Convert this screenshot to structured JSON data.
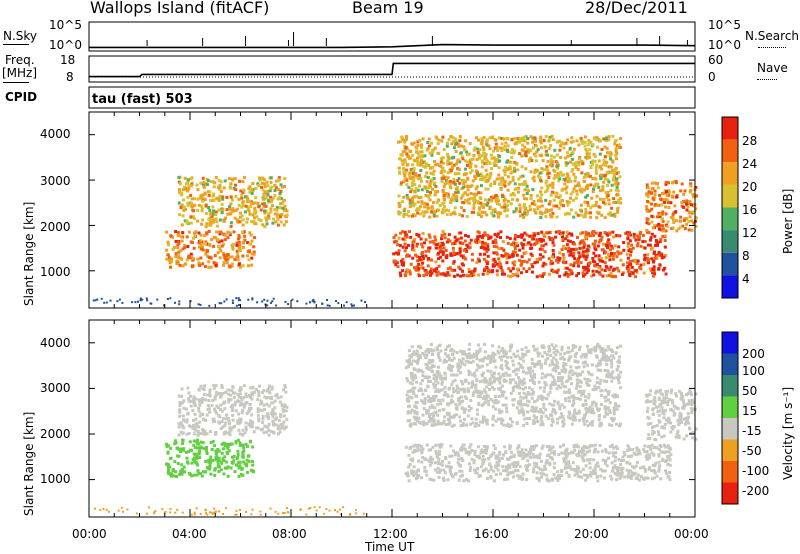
{
  "header": {
    "station": "Wallops Island (fitACF)",
    "beam": "Beam 19",
    "date": "28/Dec/2011"
  },
  "top_panel": {
    "nsky_label": "N.Sky",
    "nsearch_label": "N.Search",
    "left_ticks": [
      "10^5",
      "10^0"
    ],
    "right_ticks": [
      "10^5",
      "10^0"
    ]
  },
  "freq_panel": {
    "freq_label": "Freq.",
    "freq_unit": "[MHz]",
    "nave_label": "Nave",
    "left_ticks": [
      "18",
      "8"
    ],
    "right_ticks": [
      "60",
      "0"
    ]
  },
  "cpid_panel": {
    "cpid_label": "CPID",
    "mode": "tau (fast) 503"
  },
  "power_panel": {
    "ylabel": "Slant Range [km]",
    "yticks": [
      "4000",
      "3000",
      "2000",
      "1000"
    ],
    "colorbar_label": "Power [dB]",
    "colorbar_ticks": [
      "28",
      "24",
      "20",
      "16",
      "12",
      "8",
      "4"
    ],
    "colorbar_colors": [
      "#1010e0",
      "#2050a0",
      "#3a8a70",
      "#50b060",
      "#d8c030",
      "#f0a020",
      "#f06010",
      "#e82010"
    ]
  },
  "velocity_panel": {
    "ylabel": "Slant Range [km]",
    "yticks": [
      "4000",
      "3000",
      "2000",
      "1000"
    ],
    "colorbar_label": "Velocity [m s⁻¹]",
    "colorbar_ticks": [
      "200",
      "100",
      "50",
      "15",
      "-15",
      "-50",
      "-100",
      "-200"
    ],
    "colorbar_colors": [
      "#1010e0",
      "#2050a0",
      "#3a8a70",
      "#60d040",
      "#c8c8c0",
      "#f0a020",
      "#f06010",
      "#e82010"
    ]
  },
  "x_axis": {
    "label": "Time UT",
    "ticks": [
      "00:00",
      "04:00",
      "08:00",
      "12:00",
      "16:00",
      "20:00",
      "00:00"
    ]
  },
  "chart_data": [
    {
      "type": "line",
      "title": "",
      "series": [
        {
          "name": "N.Sky",
          "x_hours": [
            0,
            2,
            4,
            6,
            8,
            10,
            12,
            14,
            16,
            18,
            20,
            22,
            24
          ],
          "values_log10": [
            0.3,
            0.3,
            0.3,
            0.3,
            0.3,
            0.3,
            0.4,
            0.8,
            0.7,
            0.7,
            0.7,
            0.7,
            0.6
          ]
        }
      ]
    },
    {
      "type": "line",
      "title": "",
      "ylabel": "Freq. [MHz]",
      "ylim": [
        8,
        18
      ],
      "series": [
        {
          "name": "Freq.",
          "x_hours": [
            0,
            2,
            2.1,
            12,
            12.05,
            24
          ],
          "values": [
            10,
            10,
            11,
            11,
            16,
            16
          ]
        }
      ]
    },
    {
      "type": "heatmap",
      "title": "",
      "ylabel": "Slant Range [km]",
      "xlabel": "Time UT",
      "xlim": [
        0,
        24
      ],
      "ylim": [
        180,
        4500
      ],
      "quantity": "Power [dB]",
      "regions": [
        {
          "t_start": 3.5,
          "t_end": 7.8,
          "range_low": 2000,
          "range_high": 3100,
          "value": 20
        },
        {
          "t_start": 3.0,
          "t_end": 6.5,
          "range_low": 1100,
          "range_high": 1900,
          "value": 24
        },
        {
          "t_start": 12.0,
          "t_end": 22.8,
          "range_low": 900,
          "range_high": 1900,
          "value": 28
        },
        {
          "t_start": 12.2,
          "t_end": 21.0,
          "range_low": 2200,
          "range_high": 4000,
          "value": 20
        },
        {
          "t_start": 22.0,
          "t_end": 24.0,
          "range_low": 1900,
          "range_high": 3000,
          "value": 24
        }
      ]
    },
    {
      "type": "heatmap",
      "title": "",
      "ylabel": "Slant Range [km]",
      "xlabel": "Time UT",
      "xlim": [
        0,
        24
      ],
      "ylim": [
        180,
        4500
      ],
      "quantity": "Velocity [m s⁻¹]",
      "regions": [
        {
          "t_start": 3.0,
          "t_end": 6.5,
          "range_low": 1100,
          "range_high": 1900,
          "value": 30
        },
        {
          "t_start": 3.5,
          "t_end": 7.8,
          "range_low": 2000,
          "range_high": 3100,
          "value": 0
        },
        {
          "t_start": 12.5,
          "t_end": 23.0,
          "range_low": 1000,
          "range_high": 1800,
          "value": 0
        },
        {
          "t_start": 12.5,
          "t_end": 21.0,
          "range_low": 2200,
          "range_high": 4000,
          "value": 0
        },
        {
          "t_start": 22.0,
          "t_end": 24.0,
          "range_low": 1900,
          "range_high": 3000,
          "value": 0
        }
      ]
    }
  ]
}
